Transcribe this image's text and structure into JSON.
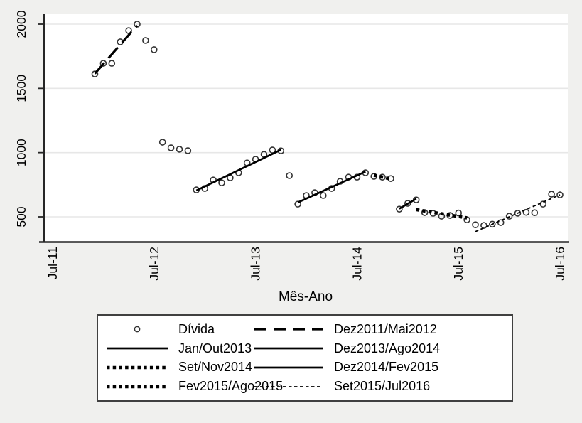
{
  "chart_data": {
    "type": "scatter",
    "title": "",
    "xlabel": "Mês-Ano",
    "ylabel": "",
    "x_tick_labels": [
      "Jul-11",
      "Jul-12",
      "Jul-13",
      "Jul-14",
      "Jul-15",
      "Jul-16"
    ],
    "x_tick_months": [
      "2011-07",
      "2012-07",
      "2013-07",
      "2014-07",
      "2015-07",
      "2016-07"
    ],
    "y_ticks": [
      500,
      1000,
      1500,
      2000
    ],
    "y_range_shown": [
      310,
      2130
    ],
    "grid": "horizontal",
    "series": [
      {
        "name": "Dívida",
        "marker": "open-circle",
        "points": [
          [
            "2011-12",
            1612
          ],
          [
            "2012-01",
            1695
          ],
          [
            "2012-02",
            1695
          ],
          [
            "2012-03",
            1862
          ],
          [
            "2012-04",
            1950
          ],
          [
            "2012-05",
            2000
          ],
          [
            "2012-06",
            1873
          ],
          [
            "2012-07",
            1801
          ],
          [
            "2012-08",
            1081
          ],
          [
            "2012-09",
            1037
          ],
          [
            "2012-10",
            1026
          ],
          [
            "2012-11",
            1015
          ],
          [
            "2012-12",
            710
          ],
          [
            "2013-01",
            721
          ],
          [
            "2013-02",
            787
          ],
          [
            "2013-03",
            765
          ],
          [
            "2013-04",
            804
          ],
          [
            "2013-05",
            843
          ],
          [
            "2013-06",
            920
          ],
          [
            "2013-07",
            948
          ],
          [
            "2013-08",
            987
          ],
          [
            "2013-09",
            1020
          ],
          [
            "2013-10",
            1014
          ],
          [
            "2013-11",
            821
          ],
          [
            "2013-12",
            599
          ],
          [
            "2014-01",
            666
          ],
          [
            "2014-02",
            688
          ],
          [
            "2014-03",
            666
          ],
          [
            "2014-04",
            721
          ],
          [
            "2014-05",
            776
          ],
          [
            "2014-06",
            809
          ],
          [
            "2014-07",
            809
          ],
          [
            "2014-08",
            843
          ],
          [
            "2014-09",
            815
          ],
          [
            "2014-10",
            809
          ],
          [
            "2014-11",
            798
          ],
          [
            "2014-12",
            560
          ],
          [
            "2015-01",
            605
          ],
          [
            "2015-02",
            632
          ],
          [
            "2015-03",
            533
          ],
          [
            "2015-04",
            527
          ],
          [
            "2015-05",
            505
          ],
          [
            "2015-06",
            511
          ],
          [
            "2015-07",
            530
          ],
          [
            "2015-08",
            477
          ],
          [
            "2015-09",
            438
          ],
          [
            "2015-10",
            433
          ],
          [
            "2015-11",
            443
          ],
          [
            "2015-12",
            455
          ],
          [
            "2016-01",
            505
          ],
          [
            "2016-02",
            528
          ],
          [
            "2016-03",
            535
          ],
          [
            "2016-04",
            532
          ],
          [
            "2016-05",
            599
          ],
          [
            "2016-06",
            677
          ],
          [
            "2016-07",
            671
          ]
        ]
      }
    ],
    "trend_segments": [
      {
        "label": "Dez2011/Mai2012",
        "style": "longdash",
        "from": [
          "2011-12",
          1615
        ],
        "to": [
          "2012-05",
          1990
        ]
      },
      {
        "label": "Jan/Out2013",
        "style": "solid",
        "from": [
          "2012-12",
          705
        ],
        "to": [
          "2013-10",
          1022
        ]
      },
      {
        "label": "Dez2013/Ago2014",
        "style": "solid",
        "from": [
          "2013-12",
          612
        ],
        "to": [
          "2014-08",
          852
        ]
      },
      {
        "label": "Set/Nov2014",
        "style": "thickdot",
        "from": [
          "2014-09",
          824
        ],
        "to": [
          "2014-11",
          795
        ]
      },
      {
        "label": "Dez2014/Fev2015",
        "style": "solid",
        "from": [
          "2014-12",
          563
        ],
        "to": [
          "2015-02",
          641
        ]
      },
      {
        "label": "Fev2015/Ago2015",
        "style": "thickdot",
        "from": [
          "2015-02",
          556
        ],
        "to": [
          "2015-08",
          492
        ]
      },
      {
        "label": "Set2015/Jul2016",
        "style": "thindash",
        "from": [
          "2015-09",
          385
        ],
        "to": [
          "2016-07",
          672
        ]
      }
    ],
    "legend": [
      {
        "swatch": "marker",
        "label": "Dívida"
      },
      {
        "swatch": "longdash",
        "label": "Dez2011/Mai2012"
      },
      {
        "swatch": "solid",
        "label": "Jan/Out2013"
      },
      {
        "swatch": "solid",
        "label": "Dez2013/Ago2014"
      },
      {
        "swatch": "thickdot",
        "label": "Set/Nov2014"
      },
      {
        "swatch": "solid",
        "label": "Dez2014/Fev2015"
      },
      {
        "swatch": "thickdot",
        "label": "Fev2015/Ago2015"
      },
      {
        "swatch": "thindash",
        "label": "Set2015/Jul2016"
      }
    ],
    "legend_position": "below"
  },
  "colors": {
    "background": "#f0f0ee",
    "plot_background": "#ffffff",
    "gridline": "#e7e7e7",
    "axis": "#262626",
    "data": "#000000",
    "marker_ring": "#333333"
  }
}
